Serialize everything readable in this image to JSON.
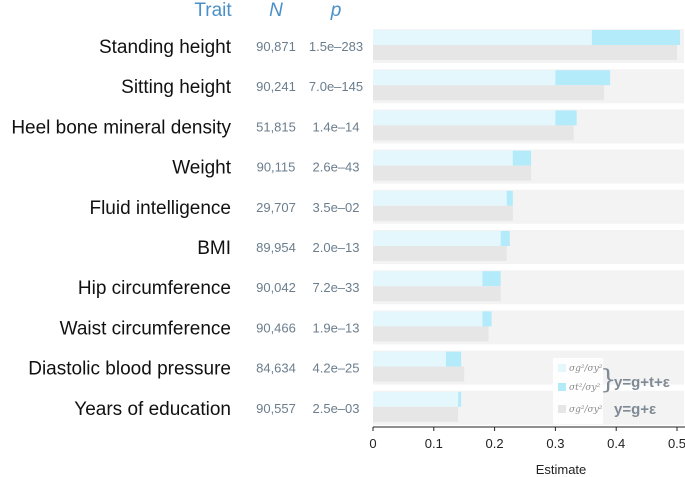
{
  "chart_data": {
    "type": "bar",
    "xlabel": "Estimate",
    "xlim": [
      0,
      0.52
    ],
    "xticks": [
      "0",
      "0.1",
      "0.2",
      "0.3",
      "0.4",
      "0.5"
    ],
    "xtick_values": [
      0,
      0.1,
      0.2,
      0.3,
      0.4,
      0.5
    ],
    "headers": {
      "trait": "Trait",
      "n": "N",
      "p": "p"
    },
    "categories": [
      "Standing height",
      "Sitting height",
      "Heel bone mineral density",
      "Weight",
      "Fluid intelligence",
      "BMI",
      "Hip circumference",
      "Waist circumference",
      "Diastolic blood pressure",
      "Years of education"
    ],
    "N": [
      "90,871",
      "90,241",
      "51,815",
      "90,115",
      "29,707",
      "89,954",
      "90,042",
      "90,466",
      "84,634",
      "90,557"
    ],
    "p": [
      "1.5e–283",
      "7.0e–145",
      "1.4e–14",
      "2.6e–43",
      "3.5e–02",
      "2.0e–13",
      "7.2e–33",
      "1.9e–13",
      "4.2e–25",
      "2.5e–03"
    ],
    "series": [
      {
        "name": "σg²/σy² (y=g+t+ε)",
        "key": "g_full",
        "values": [
          0.36,
          0.3,
          0.3,
          0.23,
          0.22,
          0.21,
          0.18,
          0.18,
          0.12,
          0.14
        ]
      },
      {
        "name": "σt²/σy² (y=g+t+ε)",
        "key": "t_full",
        "values": [
          0.145,
          0.09,
          0.035,
          0.03,
          0.01,
          0.015,
          0.03,
          0.015,
          0.025,
          0.005
        ]
      },
      {
        "name": "σg²/σy² (y=g+ε)",
        "key": "g_reduced",
        "values": [
          0.5,
          0.38,
          0.33,
          0.26,
          0.23,
          0.22,
          0.21,
          0.19,
          0.15,
          0.14
        ]
      }
    ],
    "legend": {
      "position": "bottom-right",
      "items": [
        "σg²/σy²",
        "σt²/σy²",
        "σg²/σy²"
      ],
      "model_full": "y=g+t+ε",
      "model_reduced": "y=g+ε"
    },
    "colors": {
      "g_full": "#e4f7fd",
      "t_full": "#b3ebfb",
      "g_reduced": "#e6e6e6",
      "panel": "#f3f3f3",
      "header": "#4a90c8"
    }
  }
}
